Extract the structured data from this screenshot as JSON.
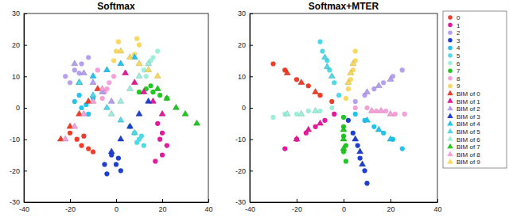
{
  "chart_data": [
    {
      "type": "scatter",
      "title": "Softmax",
      "xlim": [
        -40,
        40
      ],
      "xticks": [
        -40,
        -20,
        0,
        20,
        40
      ],
      "ylim": [
        -30,
        30
      ],
      "yticks": [
        -30,
        -20,
        -10,
        0,
        10,
        20,
        30
      ],
      "series": [
        {
          "color": "#f03c28",
          "marker": "circle",
          "x": [
            -20,
            -17,
            -15,
            -12,
            -10,
            -14
          ],
          "values": [
            -8,
            -10,
            -12,
            -13,
            -14,
            -9
          ]
        },
        {
          "color": "#e6199b",
          "marker": "circle",
          "x": [
            18,
            20,
            22,
            20,
            17,
            19
          ],
          "values": [
            -5,
            -8,
            -12,
            -15,
            -17,
            -10
          ]
        },
        {
          "color": "#b4a0ee",
          "marker": "circle",
          "x": [
            -22,
            -18,
            -15,
            -12,
            -20,
            -16
          ],
          "values": [
            10,
            12,
            14,
            16,
            8,
            11
          ]
        },
        {
          "color": "#1f3fd0",
          "marker": "circle",
          "x": [
            -2,
            0,
            2,
            -5,
            -4,
            1
          ],
          "values": [
            -15,
            -18,
            -20,
            -18,
            -21,
            -16
          ]
        },
        {
          "color": "#22c4ee",
          "marker": "circle",
          "x": [
            -15,
            -18,
            -12,
            -10,
            -16,
            -13
          ],
          "values": [
            0,
            2,
            -2,
            3,
            4,
            1
          ]
        },
        {
          "color": "#4fd9e6",
          "marker": "circle",
          "x": [
            8,
            10,
            12,
            6,
            9,
            11
          ],
          "values": [
            -8,
            -10,
            -12,
            -6,
            -11,
            -9
          ]
        },
        {
          "color": "#9eeedc",
          "marker": "circle",
          "x": [
            12,
            14,
            16,
            18,
            15,
            13
          ],
          "values": [
            12,
            14,
            16,
            18,
            15,
            10
          ]
        },
        {
          "color": "#22c822",
          "marker": "circle",
          "x": [
            10,
            13,
            16,
            19,
            22,
            15
          ],
          "values": [
            5,
            6,
            5,
            4,
            3,
            7
          ]
        },
        {
          "color": "#f5a0d8",
          "marker": "circle",
          "x": [
            -5,
            -3,
            -1,
            -8,
            -6,
            -4
          ],
          "values": [
            5,
            8,
            10,
            12,
            3,
            6
          ]
        },
        {
          "color": "#f8d860",
          "marker": "circle",
          "x": [
            -1,
            0,
            1,
            8,
            10,
            9
          ],
          "values": [
            15,
            18,
            21,
            17,
            20,
            22
          ]
        },
        {
          "color": "#f03c28",
          "marker": "triangle",
          "x": [
            -24,
            -20,
            -16,
            -12,
            -8
          ],
          "values": [
            -10,
            -6,
            -2,
            2,
            6
          ]
        },
        {
          "color": "#e6199b",
          "marker": "triangle",
          "x": [
            20,
            16,
            12,
            8,
            4
          ],
          "values": [
            -2,
            2,
            5,
            8,
            11
          ]
        },
        {
          "color": "#b4a0ee",
          "marker": "triangle",
          "x": [
            -18,
            -14,
            -10,
            -6,
            -2
          ],
          "values": [
            14,
            11,
            8,
            5,
            2
          ]
        },
        {
          "color": "#1f3fd0",
          "marker": "triangle",
          "x": [
            -2,
            2,
            6,
            10,
            14
          ],
          "values": [
            -14,
            -10,
            -6,
            -2,
            2
          ]
        },
        {
          "color": "#22c4ee",
          "marker": "triangle",
          "x": [
            -16,
            -10,
            -4,
            2,
            8
          ],
          "values": [
            8,
            10,
            12,
            14,
            16
          ]
        },
        {
          "color": "#4fd9e6",
          "marker": "triangle",
          "x": [
            8,
            2,
            -4,
            -10,
            -16
          ],
          "values": [
            -8,
            -4,
            0,
            4,
            8
          ]
        },
        {
          "color": "#9eeedc",
          "marker": "triangle",
          "x": [
            14,
            10,
            6,
            2,
            -2
          ],
          "values": [
            14,
            10,
            6,
            2,
            -2
          ]
        },
        {
          "color": "#22c822",
          "marker": "triangle",
          "x": [
            18,
            22,
            26,
            30,
            35
          ],
          "values": [
            6,
            3,
            0,
            -2,
            -5
          ]
        },
        {
          "color": "#f5a0d8",
          "marker": "triangle",
          "x": [
            -6,
            -10,
            -14,
            -18,
            -22
          ],
          "values": [
            6,
            2,
            -2,
            -6,
            -10
          ]
        },
        {
          "color": "#f8d860",
          "marker": "triangle",
          "x": [
            2,
            6,
            10,
            14,
            18
          ],
          "values": [
            18,
            16,
            14,
            12,
            10
          ]
        }
      ]
    },
    {
      "type": "scatter",
      "title": "Softmax+MTER",
      "legend": "right",
      "xlim": [
        -40,
        40
      ],
      "xticks": [
        -40,
        -20,
        0,
        20,
        40
      ],
      "ylim": [
        -30,
        30
      ],
      "yticks": [
        -30,
        -20,
        -10,
        0,
        10,
        20,
        30
      ],
      "series": [
        {
          "name": "0",
          "color": "#f03c28",
          "marker": "circle",
          "x": [
            -5,
            -10,
            -15,
            -20,
            -25,
            -30
          ],
          "values": [
            2,
            4,
            7,
            9,
            12,
            14
          ]
        },
        {
          "name": "1",
          "color": "#e6199b",
          "marker": "circle",
          "x": [
            -4,
            -8,
            -12,
            -16,
            -20,
            -25
          ],
          "values": [
            -2,
            -4,
            -6,
            -8,
            -10,
            -13
          ]
        },
        {
          "name": "2",
          "color": "#b4a0ee",
          "marker": "circle",
          "x": [
            5,
            9,
            13,
            17,
            21,
            25
          ],
          "values": [
            2,
            4,
            6,
            8,
            10,
            12
          ]
        },
        {
          "name": "3",
          "color": "#1f3fd0",
          "marker": "circle",
          "x": [
            2,
            4,
            6,
            7,
            9,
            10
          ],
          "values": [
            -4,
            -8,
            -12,
            -16,
            -20,
            -24
          ]
        },
        {
          "name": "4",
          "color": "#22c4ee",
          "marker": "circle",
          "x": [
            5,
            9,
            13,
            17,
            21,
            25
          ],
          "values": [
            -2,
            -4,
            -6,
            -8,
            -10,
            -13
          ]
        },
        {
          "name": "5",
          "color": "#4fd9e6",
          "marker": "circle",
          "x": [
            -2,
            -4,
            -6,
            -7,
            -9,
            -10
          ],
          "values": [
            4,
            8,
            12,
            15,
            18,
            21
          ]
        },
        {
          "name": "6",
          "color": "#9eeedc",
          "marker": "circle",
          "x": [
            -5,
            -10,
            -15,
            -20,
            -25,
            -30
          ],
          "values": [
            0,
            -1,
            -1,
            -2,
            -2,
            -3
          ]
        },
        {
          "name": "7",
          "color": "#22c822",
          "marker": "circle",
          "x": [
            0,
            0,
            0,
            1,
            0,
            1
          ],
          "values": [
            -3,
            -6,
            -9,
            -12,
            -14,
            -17
          ]
        },
        {
          "name": "8",
          "color": "#f5a0d8",
          "marker": "circle",
          "x": [
            5,
            10,
            14,
            18,
            22,
            26
          ],
          "values": [
            0,
            0,
            -1,
            -1,
            -2,
            -2
          ]
        },
        {
          "name": "9",
          "color": "#f8d860",
          "marker": "circle",
          "x": [
            1,
            2,
            3,
            4,
            5,
            5
          ],
          "values": [
            3,
            6,
            9,
            12,
            15,
            18
          ]
        },
        {
          "name": "BIM of 0",
          "color": "#f03c28",
          "marker": "triangle",
          "x": [
            -12,
            -18,
            -24
          ],
          "values": [
            5,
            8,
            11
          ]
        },
        {
          "name": "BIM of 1",
          "color": "#e6199b",
          "marker": "triangle",
          "x": [
            -10,
            -15,
            -20
          ],
          "values": [
            -5,
            -7,
            -10
          ]
        },
        {
          "name": "BIM of 2",
          "color": "#b4a0ee",
          "marker": "triangle",
          "x": [
            10,
            15,
            20
          ],
          "values": [
            5,
            7,
            9
          ]
        },
        {
          "name": "BIM of 3",
          "color": "#1f3fd0",
          "marker": "triangle",
          "x": [
            5,
            7,
            8
          ],
          "values": [
            -10,
            -14,
            -18
          ]
        },
        {
          "name": "BIM of 4",
          "color": "#22c4ee",
          "marker": "triangle",
          "x": [
            10,
            15,
            20
          ],
          "values": [
            -4,
            -7,
            -10
          ]
        },
        {
          "name": "BIM of 5",
          "color": "#4fd9e6",
          "marker": "triangle",
          "x": [
            -5,
            -7,
            -8
          ],
          "values": [
            10,
            13,
            16
          ]
        },
        {
          "name": "BIM of 6",
          "color": "#9eeedc",
          "marker": "triangle",
          "x": [
            -12,
            -18,
            -24
          ],
          "values": [
            -1,
            -2,
            -2
          ]
        },
        {
          "name": "BIM of 7",
          "color": "#22c822",
          "marker": "triangle",
          "x": [
            0,
            0,
            0
          ],
          "values": [
            -7,
            -10,
            -13
          ]
        },
        {
          "name": "BIM of 8",
          "color": "#f5a0d8",
          "marker": "triangle",
          "x": [
            12,
            16,
            20
          ],
          "values": [
            -1,
            -1,
            -2
          ]
        },
        {
          "name": "BIM of 9",
          "color": "#f8d860",
          "marker": "triangle",
          "x": [
            2,
            3,
            4
          ],
          "values": [
            8,
            11,
            14
          ]
        }
      ]
    }
  ]
}
